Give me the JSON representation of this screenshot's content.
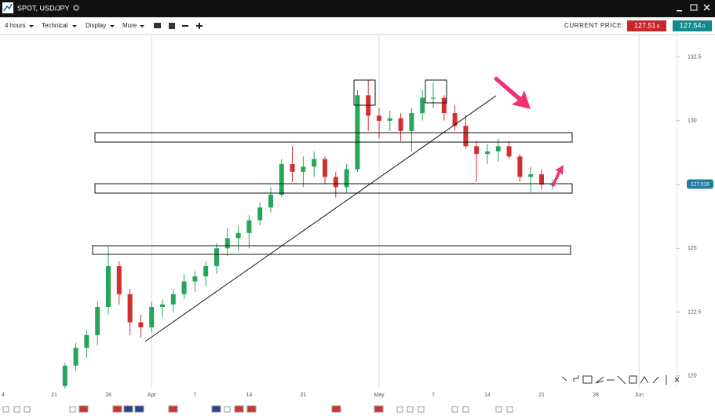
{
  "toolbar": {
    "title": "SPOT, USD/JPY",
    "timeframe": "4 hours",
    "menus": [
      "Technical",
      "Display",
      "More"
    ],
    "price_label": "CURRENT PRICE:",
    "bid": "127.51",
    "bid_pip": "6",
    "ask": "127.54",
    "ask_pip": "0"
  },
  "chart_data": {
    "type": "candlestick",
    "categories": [
      "4",
      null,
      null,
      null,
      null,
      "21",
      null,
      null,
      null,
      null,
      "28",
      null,
      null,
      null,
      "Apr",
      null,
      null,
      null,
      "7",
      null,
      null,
      null,
      null,
      "14",
      null,
      null,
      null,
      null,
      "21",
      null,
      null,
      null,
      null,
      null,
      null,
      "May",
      null,
      null,
      null,
      null,
      "7",
      null,
      null,
      null,
      null,
      "14",
      null,
      null,
      null,
      null,
      "21",
      null,
      null,
      null,
      null,
      "28",
      null,
      null,
      null,
      "Jun"
    ],
    "open": [
      null,
      null,
      null,
      null,
      null,
      null,
      119.6,
      120.4,
      121.1,
      121.6,
      122.7,
      124.3,
      123.2,
      122.1,
      121.9,
      122.7,
      122.8,
      123.2,
      123.7,
      123.9,
      124.3,
      125.0,
      125.4,
      125.6,
      126.1,
      126.6,
      127.1,
      128.3,
      128.0,
      128.2,
      128.5,
      127.8,
      127.4,
      128.1,
      131.0,
      130.2,
      130.0,
      130.1,
      129.6,
      130.3,
      130.9,
      130.9,
      130.3,
      129.8,
      129.0,
      128.7,
      128.8,
      129.0,
      128.6,
      127.8,
      127.9,
      127.5,
      null,
      null,
      null,
      null,
      null,
      null,
      null,
      null
    ],
    "high": [
      null,
      null,
      null,
      null,
      null,
      null,
      120.5,
      121.3,
      121.8,
      122.9,
      125.1,
      124.5,
      123.4,
      122.4,
      122.9,
      123.0,
      123.4,
      124.0,
      124.1,
      124.5,
      125.2,
      125.8,
      125.9,
      126.3,
      126.8,
      127.4,
      128.5,
      129.0,
      128.6,
      128.8,
      128.6,
      128.0,
      128.3,
      131.2,
      131.6,
      130.5,
      130.4,
      130.3,
      130.5,
      131.2,
      131.5,
      131.0,
      130.6,
      130.2,
      129.2,
      129.1,
      129.3,
      129.2,
      128.7,
      128.2,
      128.1,
      127.7,
      null,
      null,
      null,
      null,
      null,
      null,
      null,
      null
    ],
    "low": [
      null,
      null,
      null,
      null,
      null,
      null,
      119.5,
      120.2,
      120.7,
      121.2,
      122.4,
      122.8,
      121.6,
      121.5,
      121.7,
      122.3,
      122.5,
      123.0,
      123.3,
      123.5,
      124.0,
      124.7,
      124.9,
      125.0,
      125.9,
      126.4,
      127.0,
      127.6,
      127.4,
      127.8,
      127.5,
      127.0,
      127.2,
      128.0,
      129.6,
      129.3,
      129.6,
      129.2,
      128.8,
      130.0,
      130.5,
      130.0,
      129.6,
      128.9,
      127.6,
      128.3,
      128.4,
      128.5,
      127.6,
      127.2,
      127.3,
      127.3,
      null,
      null,
      null,
      null,
      null,
      null,
      null,
      null
    ],
    "close": [
      null,
      null,
      null,
      null,
      null,
      null,
      120.4,
      121.1,
      121.6,
      122.7,
      124.3,
      123.2,
      122.1,
      121.9,
      122.7,
      122.8,
      123.2,
      123.7,
      123.9,
      124.3,
      125.0,
      125.4,
      125.6,
      126.1,
      126.6,
      127.1,
      128.3,
      128.0,
      128.2,
      128.5,
      127.8,
      127.4,
      128.1,
      131.0,
      130.2,
      130.0,
      130.1,
      129.6,
      130.3,
      130.9,
      130.9,
      130.3,
      129.8,
      129.0,
      128.7,
      128.8,
      129.0,
      128.6,
      127.8,
      127.9,
      127.5,
      127.5,
      null,
      null,
      null,
      null,
      null,
      null,
      null,
      null
    ],
    "up_color": "#26a65b",
    "down_color": "#d32f2f",
    "ylim": [
      119.5,
      133.35
    ],
    "yticks": [
      120,
      122.5,
      125,
      127.5,
      130,
      132.5
    ],
    "current_price": {
      "value": 127.516,
      "label": "127.516"
    }
  }
}
